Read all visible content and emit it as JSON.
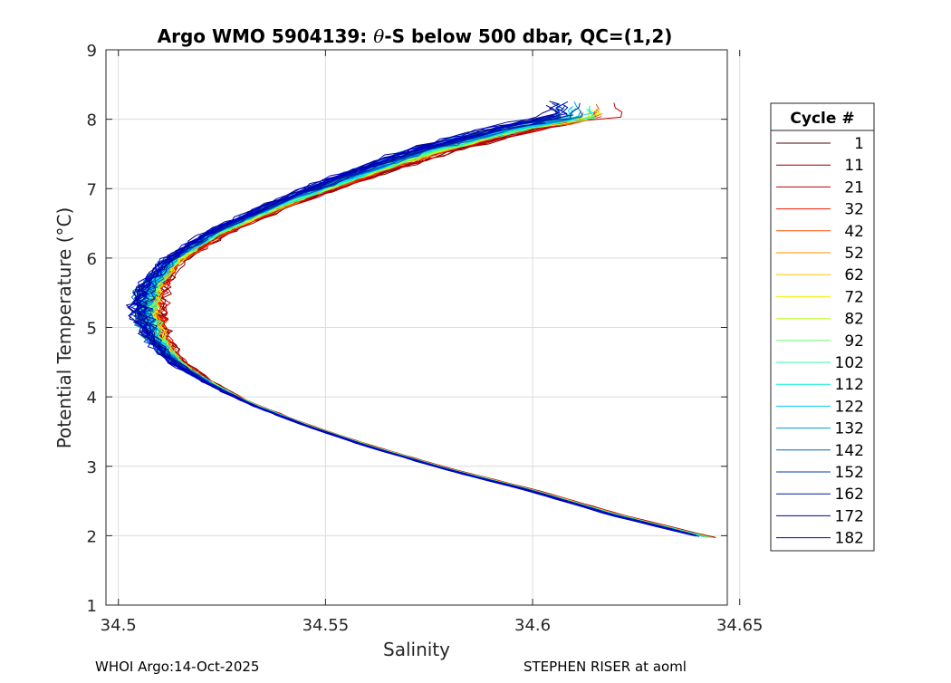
{
  "chart_data": {
    "type": "line",
    "title_prefix": "Argo WMO 5904139: ",
    "title_theta": "θ",
    "title_suffix": "-S below 500 dbar,  QC=(1,2)",
    "xlabel": "Salinity",
    "ylabel": "Potential Temperature (°C)",
    "xlim": [
      34.497,
      34.647
    ],
    "ylim": [
      1,
      9
    ],
    "xticks": [
      34.5,
      34.55,
      34.6,
      34.65
    ],
    "xtick_labels": [
      "34.5",
      "34.55",
      "34.6",
      "34.65"
    ],
    "yticks": [
      1,
      2,
      3,
      4,
      5,
      6,
      7,
      8,
      9
    ],
    "ytick_labels": [
      "1",
      "2",
      "3",
      "4",
      "5",
      "6",
      "7",
      "8",
      "9"
    ],
    "grid": true,
    "legend_title": "Cycle #",
    "legend_position": "outside-right",
    "series": [
      {
        "name": "1",
        "color": "#550000"
      },
      {
        "name": "11",
        "color": "#8a0000"
      },
      {
        "name": "21",
        "color": "#c00000"
      },
      {
        "name": "32",
        "color": "#f01800"
      },
      {
        "name": "42",
        "color": "#ff5000"
      },
      {
        "name": "52",
        "color": "#ff8c00"
      },
      {
        "name": "62",
        "color": "#ffc400"
      },
      {
        "name": "72",
        "color": "#f8f000"
      },
      {
        "name": "82",
        "color": "#b8ff30"
      },
      {
        "name": "92",
        "color": "#70ff70"
      },
      {
        "name": "102",
        "color": "#30ffa8"
      },
      {
        "name": "112",
        "color": "#00f0d8"
      },
      {
        "name": "122",
        "color": "#00c8ff"
      },
      {
        "name": "132",
        "color": "#0094e0"
      },
      {
        "name": "142",
        "color": "#0064c8"
      },
      {
        "name": "152",
        "color": "#003cb4"
      },
      {
        "name": "162",
        "color": "#0018a0"
      },
      {
        "name": "172",
        "color": "#00088c"
      },
      {
        "name": "182",
        "color": "#0000c8"
      }
    ],
    "profile_shape": {
      "s": [
        34.6425,
        34.62,
        34.6,
        34.58,
        34.56,
        34.545,
        34.532,
        34.522,
        34.514,
        34.509,
        34.507,
        34.508,
        34.513,
        34.523,
        34.54,
        34.558,
        34.575,
        34.595,
        34.612
      ],
      "t": [
        1.97,
        2.3,
        2.65,
        2.95,
        3.3,
        3.6,
        3.9,
        4.2,
        4.5,
        4.85,
        5.25,
        5.6,
        5.95,
        6.35,
        6.8,
        7.2,
        7.55,
        7.85,
        8.05
      ]
    },
    "annotations": {
      "left": "WHOI Argo:14-Oct-2025",
      "right": "STEPHEN RISER at aoml"
    }
  }
}
